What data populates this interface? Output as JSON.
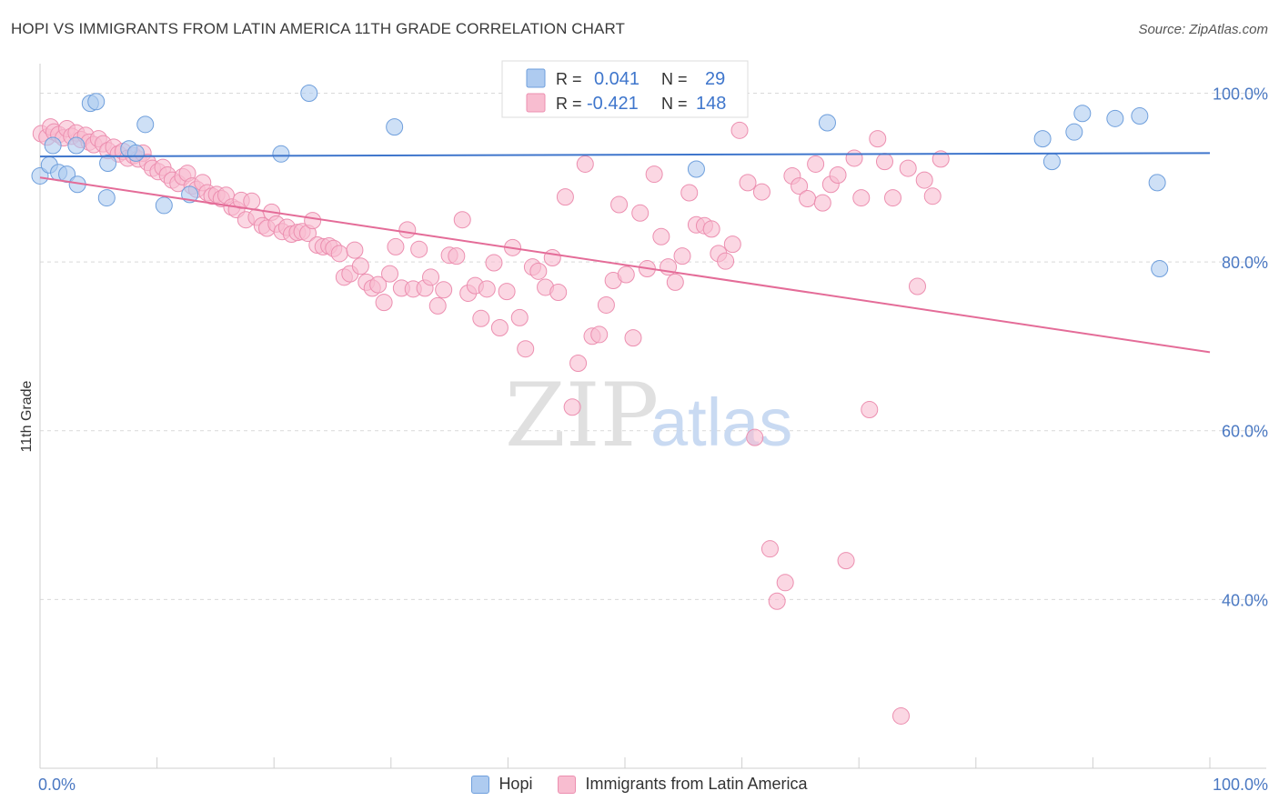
{
  "header": {
    "title": "HOPI VS IMMIGRANTS FROM LATIN AMERICA 11TH GRADE CORRELATION CHART",
    "source": "Source: ZipAtlas.com"
  },
  "watermark": {
    "zip": "ZIP",
    "atlas": "atlas"
  },
  "colors": {
    "hopi_fill": "#aecbf0",
    "hopi_stroke": "#6f9fdc",
    "hopi_line": "#3f76cc",
    "latin_fill": "#f8bdd0",
    "latin_stroke": "#ec8fb0",
    "latin_line": "#e46c98",
    "tick_text": "#4a78c2",
    "grid": "#d9d9d9"
  },
  "legend_box": {
    "rows": [
      {
        "r_label": "R = ",
        "r_value": "0.041",
        "n_label": "N = ",
        "n_value": "29"
      },
      {
        "r_label": "R = ",
        "r_value": "-0.421",
        "n_label": "N = ",
        "n_value": "148"
      }
    ]
  },
  "chart_data": {
    "type": "scatter",
    "xlabel": "",
    "ylabel": "11th Grade",
    "xlim": [
      0,
      100
    ],
    "ylim": [
      20,
      103.5
    ],
    "x_tick_labels": [
      "0.0%",
      "100.0%"
    ],
    "y_ticks": [
      40,
      60,
      80,
      100
    ],
    "y_tick_labels": [
      "40.0%",
      "60.0%",
      "80.0%",
      "100.0%"
    ],
    "grid": true,
    "legend": "top-center",
    "series": [
      {
        "name": "Hopi",
        "trend": {
          "x": [
            0,
            100
          ],
          "y": [
            92.5,
            92.9
          ]
        },
        "points": [
          [
            0,
            90.2
          ],
          [
            1.1,
            93.8
          ],
          [
            0.8,
            91.5
          ],
          [
            1.6,
            90.6
          ],
          [
            2.3,
            90.4
          ],
          [
            3.1,
            93.8
          ],
          [
            3.2,
            89.2
          ],
          [
            4.3,
            98.8
          ],
          [
            4.8,
            99.0
          ],
          [
            5.7,
            87.6
          ],
          [
            5.8,
            91.7
          ],
          [
            7.6,
            93.4
          ],
          [
            8.2,
            92.9
          ],
          [
            9.0,
            96.3
          ],
          [
            10.6,
            86.7
          ],
          [
            12.8,
            88.0
          ],
          [
            20.6,
            92.8
          ],
          [
            23.0,
            100.0
          ],
          [
            30.3,
            96.0
          ],
          [
            56.1,
            91.0
          ],
          [
            67.3,
            96.5
          ],
          [
            85.7,
            94.6
          ],
          [
            86.5,
            91.9
          ],
          [
            88.4,
            95.4
          ],
          [
            89.1,
            97.6
          ],
          [
            91.9,
            97.0
          ],
          [
            94.0,
            97.3
          ],
          [
            95.5,
            89.4
          ],
          [
            95.7,
            79.2
          ]
        ]
      },
      {
        "name": "Immigrants from Latin America",
        "trend": {
          "x": [
            0,
            100
          ],
          "y": [
            90.0,
            69.3
          ]
        },
        "points": [
          [
            0.1,
            95.2
          ],
          [
            0.6,
            94.8
          ],
          [
            0.9,
            96.0
          ],
          [
            1.2,
            95.4
          ],
          [
            1.6,
            95.1
          ],
          [
            2.0,
            94.7
          ],
          [
            2.3,
            95.8
          ],
          [
            2.7,
            94.9
          ],
          [
            3.1,
            95.3
          ],
          [
            3.5,
            94.5
          ],
          [
            3.9,
            95.0
          ],
          [
            4.2,
            94.2
          ],
          [
            4.6,
            93.9
          ],
          [
            5.0,
            94.6
          ],
          [
            5.4,
            94.0
          ],
          [
            5.8,
            93.2
          ],
          [
            6.3,
            93.6
          ],
          [
            6.7,
            92.8
          ],
          [
            7.1,
            93.1
          ],
          [
            7.5,
            92.3
          ],
          [
            8.0,
            92.6
          ],
          [
            8.4,
            92.2
          ],
          [
            8.8,
            92.9
          ],
          [
            9.2,
            91.8
          ],
          [
            9.6,
            91.1
          ],
          [
            10.1,
            90.7
          ],
          [
            10.5,
            91.2
          ],
          [
            10.9,
            90.3
          ],
          [
            11.3,
            89.7
          ],
          [
            11.8,
            89.3
          ],
          [
            12.2,
            90.1
          ],
          [
            12.6,
            90.5
          ],
          [
            13.0,
            89.0
          ],
          [
            13.4,
            88.6
          ],
          [
            13.9,
            89.4
          ],
          [
            14.3,
            88.2
          ],
          [
            14.7,
            87.8
          ],
          [
            15.1,
            88.0
          ],
          [
            15.5,
            87.5
          ],
          [
            15.9,
            87.9
          ],
          [
            16.4,
            86.5
          ],
          [
            16.8,
            86.2
          ],
          [
            17.2,
            87.3
          ],
          [
            17.6,
            85.0
          ],
          [
            18.1,
            87.2
          ],
          [
            18.5,
            85.3
          ],
          [
            19.0,
            84.3
          ],
          [
            19.4,
            84.0
          ],
          [
            19.8,
            85.9
          ],
          [
            20.2,
            84.5
          ],
          [
            20.7,
            83.6
          ],
          [
            21.1,
            84.1
          ],
          [
            21.5,
            83.3
          ],
          [
            22.0,
            83.5
          ],
          [
            22.4,
            83.6
          ],
          [
            22.9,
            83.4
          ],
          [
            23.3,
            84.9
          ],
          [
            23.7,
            82.0
          ],
          [
            24.2,
            81.8
          ],
          [
            24.7,
            81.9
          ],
          [
            25.1,
            81.6
          ],
          [
            25.6,
            81.0
          ],
          [
            26.0,
            78.2
          ],
          [
            26.5,
            78.6
          ],
          [
            26.9,
            81.4
          ],
          [
            27.4,
            79.5
          ],
          [
            27.9,
            77.6
          ],
          [
            28.4,
            76.9
          ],
          [
            28.9,
            77.3
          ],
          [
            29.4,
            75.2
          ],
          [
            29.9,
            78.6
          ],
          [
            30.4,
            81.8
          ],
          [
            30.9,
            76.9
          ],
          [
            31.4,
            83.8
          ],
          [
            31.9,
            76.8
          ],
          [
            32.4,
            81.5
          ],
          [
            32.9,
            76.9
          ],
          [
            33.4,
            78.2
          ],
          [
            34.0,
            74.8
          ],
          [
            34.5,
            76.7
          ],
          [
            35.0,
            80.8
          ],
          [
            35.6,
            80.7
          ],
          [
            36.1,
            85.0
          ],
          [
            36.6,
            76.3
          ],
          [
            37.2,
            77.2
          ],
          [
            37.7,
            73.3
          ],
          [
            38.2,
            76.8
          ],
          [
            38.8,
            79.9
          ],
          [
            39.3,
            72.2
          ],
          [
            39.9,
            76.5
          ],
          [
            40.4,
            81.7
          ],
          [
            41.0,
            73.4
          ],
          [
            41.5,
            69.7
          ],
          [
            42.1,
            79.4
          ],
          [
            42.6,
            78.9
          ],
          [
            43.2,
            77.0
          ],
          [
            43.8,
            80.5
          ],
          [
            44.3,
            76.4
          ],
          [
            44.9,
            87.7
          ],
          [
            45.5,
            62.8
          ],
          [
            46.0,
            68.0
          ],
          [
            46.6,
            91.6
          ],
          [
            47.2,
            71.2
          ],
          [
            47.8,
            71.4
          ],
          [
            48.4,
            74.9
          ],
          [
            49.0,
            77.8
          ],
          [
            49.5,
            86.8
          ],
          [
            50.1,
            78.5
          ],
          [
            50.7,
            71.0
          ],
          [
            51.3,
            85.8
          ],
          [
            51.9,
            79.2
          ],
          [
            52.5,
            90.4
          ],
          [
            53.1,
            83.0
          ],
          [
            53.7,
            79.4
          ],
          [
            54.3,
            77.6
          ],
          [
            54.9,
            80.7
          ],
          [
            55.5,
            88.2
          ],
          [
            56.1,
            84.4
          ],
          [
            56.8,
            84.3
          ],
          [
            57.4,
            83.9
          ],
          [
            58.0,
            81.0
          ],
          [
            58.6,
            80.1
          ],
          [
            59.2,
            82.1
          ],
          [
            59.8,
            95.6
          ],
          [
            60.5,
            89.4
          ],
          [
            61.1,
            59.2
          ],
          [
            61.7,
            88.3
          ],
          [
            62.4,
            46.0
          ],
          [
            63.0,
            39.8
          ],
          [
            63.7,
            42.0
          ],
          [
            64.3,
            90.2
          ],
          [
            64.9,
            89.0
          ],
          [
            65.6,
            87.5
          ],
          [
            66.3,
            91.6
          ],
          [
            66.9,
            87.0
          ],
          [
            67.6,
            89.2
          ],
          [
            68.2,
            90.3
          ],
          [
            68.9,
            44.6
          ],
          [
            69.6,
            92.3
          ],
          [
            70.2,
            87.6
          ],
          [
            70.9,
            62.5
          ],
          [
            71.6,
            94.6
          ],
          [
            72.2,
            91.9
          ],
          [
            72.9,
            87.6
          ],
          [
            73.6,
            26.2
          ],
          [
            74.2,
            91.1
          ],
          [
            75.0,
            77.1
          ],
          [
            75.6,
            89.7
          ],
          [
            76.3,
            87.8
          ],
          [
            77.0,
            92.2
          ]
        ]
      }
    ]
  },
  "bottom_legend": [
    {
      "label": "Hopi"
    },
    {
      "label": "Immigrants from Latin America"
    }
  ]
}
